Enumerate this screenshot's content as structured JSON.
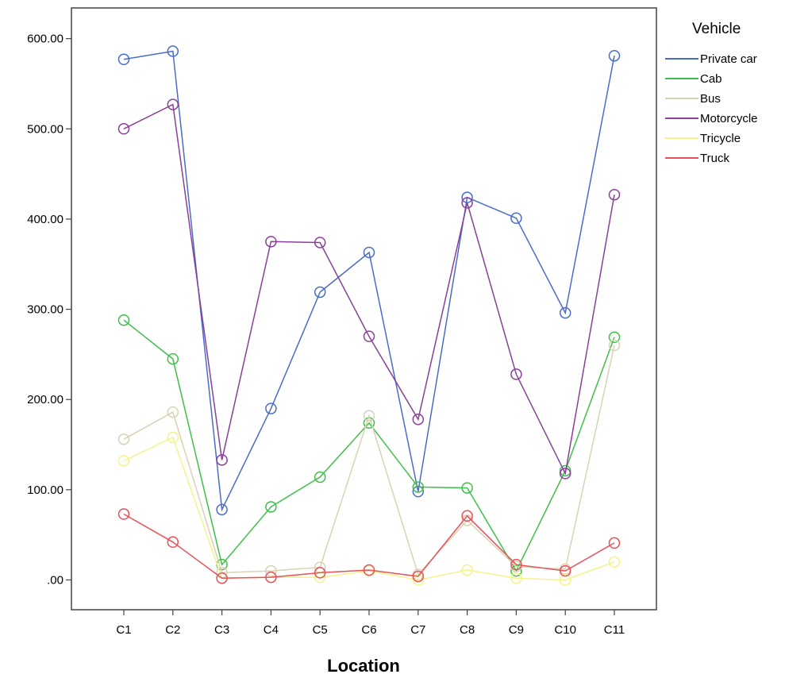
{
  "chart_data": {
    "type": "line",
    "xlabel": "Location",
    "ylabel": "",
    "categories": [
      "C1",
      "C2",
      "C3",
      "C4",
      "C5",
      "C6",
      "C7",
      "C8",
      "C9",
      "C10",
      "C11"
    ],
    "ylim": [
      -33,
      634
    ],
    "yticks": [
      0,
      100,
      200,
      300,
      400,
      500,
      600
    ],
    "ytick_labels": [
      ".00",
      "100.00",
      "200.00",
      "300.00",
      "400.00",
      "500.00",
      "600.00"
    ],
    "grid": false,
    "marker": "open-circle",
    "legend": {
      "title": "Vehicle",
      "placement": "right"
    },
    "series": [
      {
        "name": "Private car",
        "color": "#4a6cc8",
        "values": [
          577,
          586,
          78,
          190,
          319,
          363,
          98,
          424,
          401,
          296,
          581
        ]
      },
      {
        "name": "Cab",
        "color": "#3fbf4a",
        "values": [
          288,
          245,
          17,
          81,
          114,
          174,
          103,
          102,
          10,
          121,
          269
        ]
      },
      {
        "name": "Bus",
        "color": "#d8d2b4",
        "values": [
          156,
          186,
          8,
          10,
          14,
          182,
          6,
          66,
          15,
          12,
          260
        ]
      },
      {
        "name": "Motorcycle",
        "color": "#8a3f9a",
        "values": [
          500,
          527,
          133,
          375,
          374,
          270,
          178,
          418,
          228,
          118,
          427
        ]
      },
      {
        "name": "Tricycle",
        "color": "#f6f28a",
        "values": [
          132,
          158,
          2,
          3,
          3,
          10,
          0,
          11,
          2,
          0,
          20
        ]
      },
      {
        "name": "Truck",
        "color": "#e8505a",
        "values": [
          73,
          42,
          2,
          3,
          8,
          11,
          4,
          71,
          17,
          10,
          41
        ]
      }
    ]
  }
}
